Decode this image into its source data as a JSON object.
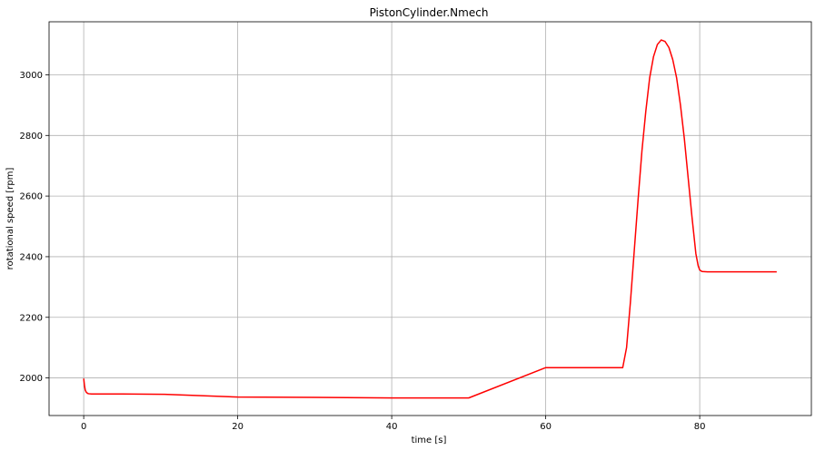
{
  "chart_data": {
    "type": "line",
    "title": "PistonCylinder.Nmech",
    "xlabel": "time [s]",
    "ylabel": "rotational speed [rpm]",
    "xlim": [
      -4.5,
      94.5
    ],
    "ylim": [
      1876,
      3175
    ],
    "xticks": [
      0,
      20,
      40,
      60,
      80
    ],
    "yticks": [
      2000,
      2200,
      2400,
      2600,
      2800,
      3000
    ],
    "grid": true,
    "legend": "none",
    "series": [
      {
        "color": "#ff0000",
        "points": [
          [
            0,
            1998
          ],
          [
            0.1,
            1975
          ],
          [
            0.2,
            1960
          ],
          [
            0.35,
            1952
          ],
          [
            0.6,
            1948
          ],
          [
            1,
            1947
          ],
          [
            5,
            1947
          ],
          [
            10.5,
            1946
          ],
          [
            20,
            1937
          ],
          [
            30,
            1936
          ],
          [
            40,
            1934
          ],
          [
            50,
            1934
          ],
          [
            60,
            2034
          ],
          [
            70,
            2034
          ],
          [
            70.5,
            2100
          ],
          [
            71,
            2250
          ],
          [
            71.5,
            2420
          ],
          [
            72,
            2590
          ],
          [
            72.5,
            2750
          ],
          [
            73,
            2880
          ],
          [
            73.5,
            2990
          ],
          [
            74,
            3060
          ],
          [
            74.5,
            3100
          ],
          [
            75,
            3115
          ],
          [
            75.5,
            3110
          ],
          [
            76,
            3090
          ],
          [
            76.5,
            3050
          ],
          [
            77,
            2990
          ],
          [
            77.5,
            2900
          ],
          [
            78,
            2790
          ],
          [
            78.5,
            2660
          ],
          [
            79,
            2530
          ],
          [
            79.5,
            2410
          ],
          [
            79.8,
            2370
          ],
          [
            80,
            2356
          ],
          [
            80.3,
            2351
          ],
          [
            81,
            2350
          ],
          [
            85,
            2350
          ],
          [
            90,
            2350
          ]
        ]
      }
    ]
  }
}
